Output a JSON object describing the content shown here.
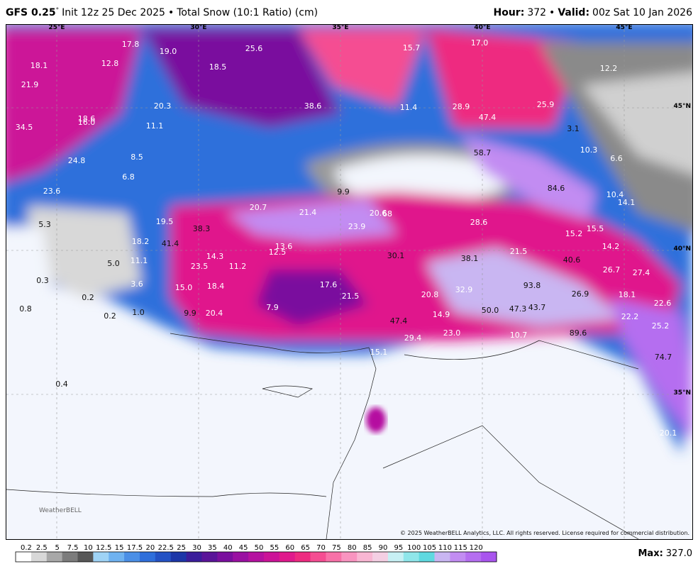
{
  "header": {
    "model": "GFS 0.25",
    "degree": "°",
    "init": "Init 12z 25 Dec 2025",
    "sep": "•",
    "product": "Total Snow (10:1 Ratio) (cm)",
    "hour_label": "Hour:",
    "hour": "372",
    "sep2": "•",
    "valid_label": "Valid:",
    "valid": "00z Sat 10 Jan 2026"
  },
  "map": {
    "lon_labels": [
      "25°E",
      "30°E",
      "35°E",
      "40°E",
      "45°E"
    ],
    "lat_labels": [
      "45°N",
      "40°N",
      "35°N"
    ],
    "labels": [
      "17.8",
      "19.0",
      "25.6",
      "15.7",
      "17.0",
      "18.1",
      "12.8",
      "18.5",
      "12.2",
      "21.9",
      "20.3",
      "38.6",
      "11.4",
      "28.9",
      "25.9",
      "47.4",
      "18.6",
      "16.0",
      "11.1",
      "3.1",
      "34.5",
      "10.3",
      "6.6",
      "58.7",
      "8.5",
      "24.8",
      "6.8",
      "84.6",
      "23.6",
      "9.9",
      "10.4",
      "14.1",
      "20.7",
      "21.4",
      "20.6",
      "68",
      "28.6",
      "19.5",
      "5.3",
      "38.3",
      "23.9",
      "15.2",
      "15.5",
      "18.2",
      "41.4",
      "13.6",
      "12.5",
      "14.2",
      "30.1",
      "38.1",
      "21.5",
      "14.3",
      "40.6",
      "11.1",
      "5.0",
      "23.5",
      "11.2",
      "26.7",
      "27.4",
      "0.3",
      "3.6",
      "17.6",
      "15.0",
      "18.4",
      "93.8",
      "0.2",
      "21.5",
      "20.8",
      "32.9",
      "26.9",
      "18.1",
      "22.6",
      "0.8",
      "7.9",
      "1.0",
      "9.9",
      "20.4",
      "0.2",
      "14.9",
      "50.0",
      "47.3",
      "43.7",
      "22.2",
      "47.4",
      "25.2",
      "23.0",
      "10.7",
      "89.6",
      "29.4",
      "15.1",
      "74.7",
      "0.4",
      "20.1"
    ],
    "logo": "WeatherBELL",
    "copyright": "© 2025 WeatherBELL Analytics, LLC. All rights reserved. License required for commercial distribution."
  },
  "colorbar": {
    "labels": [
      "0.2",
      "2.5",
      "5",
      "7.5",
      "10",
      "12.5",
      "15",
      "17.5",
      "20",
      "22.5",
      "25",
      "30",
      "35",
      "40",
      "45",
      "50",
      "55",
      "60",
      "65",
      "70",
      "75",
      "80",
      "85",
      "90",
      "95",
      "100",
      "105",
      "110",
      "115",
      "120"
    ],
    "colors": [
      "#ffffff",
      "#d8d8d8",
      "#a8a8a8",
      "#7c7c7c",
      "#575757",
      "#9fd3f5",
      "#6fb2f0",
      "#4b8fe6",
      "#2f6fdb",
      "#2452c4",
      "#1c36a8",
      "#3b1d9b",
      "#5a1499",
      "#7a0f9e",
      "#9a10a2",
      "#b511a0",
      "#cc1398",
      "#e0198c",
      "#ee2a80",
      "#f54d92",
      "#f871a8",
      "#f994c0",
      "#f9b6d3",
      "#f4cfe3",
      "#c7f0f4",
      "#8fe6ea",
      "#5fd9e0",
      "#c9b6f2",
      "#c28cf2",
      "#b56ef0",
      "#a955ee"
    ],
    "max_label": "Max:",
    "max_value": "327.0"
  }
}
